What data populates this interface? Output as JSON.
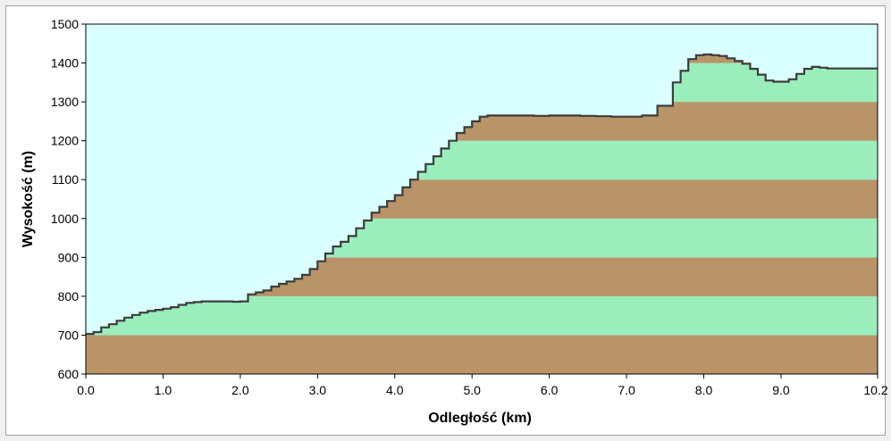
{
  "chart_data": {
    "type": "area",
    "xlabel": "Odległość  (km)",
    "ylabel": "Wysokość (m)",
    "xlim": [
      0,
      10.25
    ],
    "ylim": [
      600,
      1500
    ],
    "x_ticks": [
      "0.0",
      "1.0",
      "2.0",
      "3.0",
      "4.0",
      "5.0",
      "6.0",
      "7.0",
      "8.0",
      "9.0",
      "10.2"
    ],
    "y_ticks": [
      "600",
      "700",
      "800",
      "900",
      "1000",
      "1100",
      "1200",
      "1300",
      "1400",
      "1500"
    ],
    "band_colors": [
      "#b99468",
      "#9aeebc"
    ],
    "sky_color": "#daffff",
    "grid": false,
    "series": [
      {
        "x": [
          0.0,
          0.1,
          0.2,
          0.3,
          0.4,
          0.5,
          0.6,
          0.7,
          0.8,
          0.9,
          1.0,
          1.1,
          1.2,
          1.3,
          1.4,
          1.5,
          1.6,
          1.7,
          1.8,
          1.9,
          2.0,
          2.1,
          2.2,
          2.3,
          2.4,
          2.5,
          2.6,
          2.7,
          2.8,
          2.9,
          3.0,
          3.1,
          3.2,
          3.3,
          3.4,
          3.5,
          3.6,
          3.7,
          3.8,
          3.9,
          4.0,
          4.1,
          4.2,
          4.3,
          4.4,
          4.5,
          4.6,
          4.7,
          4.8,
          4.9,
          5.0,
          5.1,
          5.2,
          5.4,
          5.6,
          5.8,
          6.0,
          6.2,
          6.4,
          6.6,
          6.8,
          7.0,
          7.2,
          7.4,
          7.6,
          7.7,
          7.8,
          7.9,
          8.0,
          8.1,
          8.2,
          8.3,
          8.4,
          8.5,
          8.6,
          8.7,
          8.8,
          8.9,
          9.0,
          9.1,
          9.2,
          9.3,
          9.4,
          9.5,
          9.6,
          9.7,
          9.8,
          9.9,
          10.0,
          10.1,
          10.2,
          10.25
        ],
        "y": [
          703,
          708,
          720,
          728,
          737,
          745,
          752,
          758,
          762,
          765,
          768,
          772,
          778,
          783,
          785,
          787,
          787,
          787,
          787,
          786,
          787,
          805,
          810,
          815,
          825,
          832,
          838,
          845,
          855,
          870,
          890,
          910,
          928,
          940,
          955,
          975,
          995,
          1015,
          1030,
          1045,
          1060,
          1080,
          1100,
          1120,
          1140,
          1160,
          1180,
          1200,
          1220,
          1235,
          1250,
          1262,
          1265,
          1265,
          1265,
          1264,
          1265,
          1265,
          1264,
          1263,
          1262,
          1262,
          1265,
          1290,
          1350,
          1380,
          1410,
          1420,
          1422,
          1420,
          1418,
          1412,
          1405,
          1398,
          1385,
          1370,
          1355,
          1352,
          1352,
          1358,
          1372,
          1385,
          1390,
          1388,
          1386,
          1386,
          1386,
          1386,
          1386,
          1386,
          1386,
          1386
        ]
      }
    ]
  }
}
